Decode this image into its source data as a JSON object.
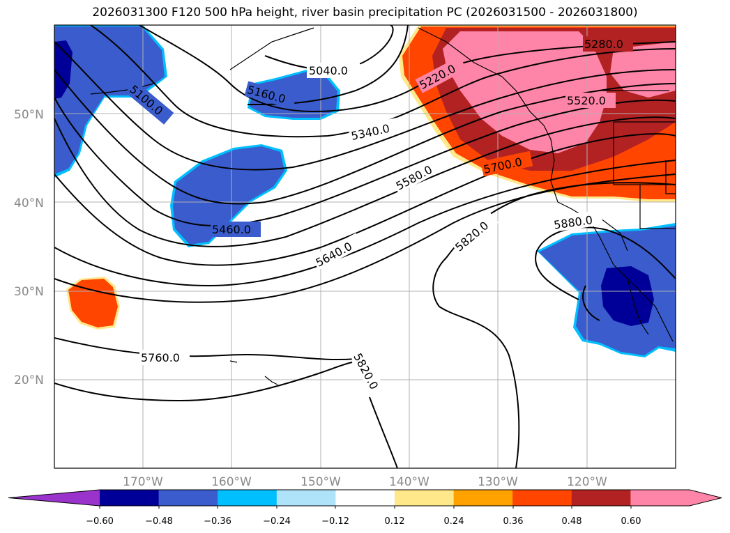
{
  "title": "2026031300 F120 500 hPa height, river basin precipitation PC (2026031500 - 2026031800)",
  "lat_labels": [
    "50°N",
    "40°N",
    "30°N",
    "20°N"
  ],
  "lon_labels": [
    "170°W",
    "160°W",
    "150°W",
    "140°W",
    "130°W",
    "120°W"
  ],
  "contour_labels": [
    "5040.0",
    "5160.0",
    "5100.0",
    "5220.0",
    "5280.0",
    "5340.0",
    "5520.0",
    "5580.0",
    "5700.0",
    "5460.0",
    "5640.0",
    "5820.0",
    "5880.0",
    "5760.0",
    "5820.0"
  ],
  "colorbar": {
    "ticks": [
      "−0.60",
      "−0.48",
      "−0.36",
      "−0.24",
      "−0.12",
      "0.12",
      "0.24",
      "0.36",
      "0.48",
      "0.60"
    ],
    "colors": [
      "#9933cc",
      "#000099",
      "#3a5ccc",
      "#00bfff",
      "#aee3fa",
      "#ffffff",
      "#ffe88a",
      "#ffa200",
      "#ff4500",
      "#b22222",
      "#ff85a8",
      "#ff85a8"
    ]
  }
}
